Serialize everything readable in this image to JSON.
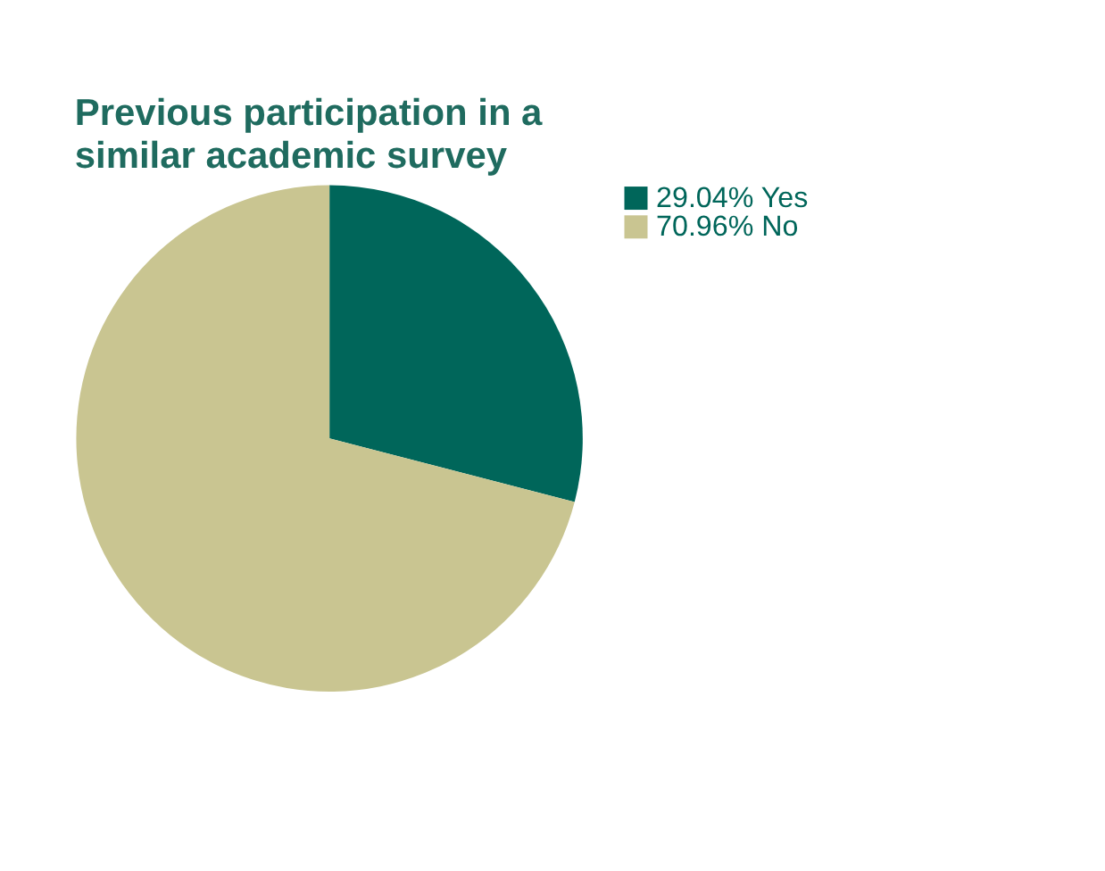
{
  "chart_data": {
    "type": "pie",
    "title": "Previous participation in a\nsimilar academic survey",
    "categories": [
      "Yes",
      "No"
    ],
    "values": [
      29.04,
      70.96
    ],
    "value_labels": [
      "29.04%",
      "70.96%"
    ],
    "colors": [
      "#00665a",
      "#c9c591"
    ],
    "legend": "top right"
  }
}
